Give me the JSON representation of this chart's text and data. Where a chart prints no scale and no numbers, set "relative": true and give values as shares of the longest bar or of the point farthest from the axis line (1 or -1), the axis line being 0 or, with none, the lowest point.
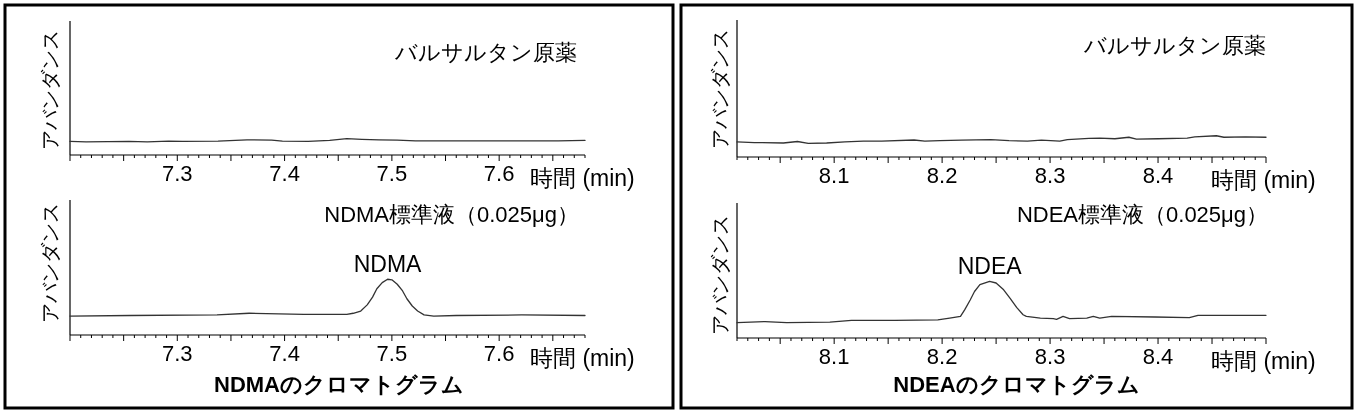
{
  "chart_data": [
    {
      "type": "line",
      "title": "バルサルタン原薬",
      "xlabel": "時間 (min)",
      "ylabel": "アバンダンス",
      "relative": true,
      "tick_labels": "x",
      "xlim": [
        7.2,
        7.68
      ],
      "xticks": [
        {
          "value": 7.2,
          "label": null
        },
        {
          "value": 7.21,
          "label": null
        },
        {
          "value": 7.22,
          "label": null
        },
        {
          "value": 7.23,
          "label": null
        },
        {
          "value": 7.24,
          "label": null
        },
        {
          "value": 7.25,
          "label": null
        },
        {
          "value": 7.26,
          "label": null
        },
        {
          "value": 7.27,
          "label": null
        },
        {
          "value": 7.28,
          "label": null
        },
        {
          "value": 7.29,
          "label": null
        },
        7.3,
        {
          "value": 7.31,
          "label": null
        },
        {
          "value": 7.32,
          "label": null
        },
        {
          "value": 7.33,
          "label": null
        },
        {
          "value": 7.34,
          "label": null
        },
        {
          "value": 7.35,
          "label": null
        },
        {
          "value": 7.36,
          "label": null
        },
        {
          "value": 7.37,
          "label": null
        },
        {
          "value": 7.38,
          "label": null
        },
        {
          "value": 7.39,
          "label": null
        },
        7.4,
        {
          "value": 7.41,
          "label": null
        },
        {
          "value": 7.42,
          "label": null
        },
        {
          "value": 7.43,
          "label": null
        },
        {
          "value": 7.44,
          "label": null
        },
        {
          "value": 7.45,
          "label": null
        },
        {
          "value": 7.46,
          "label": null
        },
        {
          "value": 7.47,
          "label": null
        },
        {
          "value": 7.48,
          "label": null
        },
        {
          "value": 7.49,
          "label": null
        },
        7.5,
        {
          "value": 7.51,
          "label": null
        },
        {
          "value": 7.52,
          "label": null
        },
        {
          "value": 7.53,
          "label": null
        },
        {
          "value": 7.54,
          "label": null
        },
        {
          "value": 7.55,
          "label": null
        },
        {
          "value": 7.56,
          "label": null
        },
        {
          "value": 7.57,
          "label": null
        },
        {
          "value": 7.58,
          "label": null
        },
        {
          "value": 7.59,
          "label": null
        },
        7.6,
        {
          "value": 7.61,
          "label": null
        },
        {
          "value": 7.62,
          "label": null
        },
        {
          "value": 7.63,
          "label": null
        },
        {
          "value": 7.64,
          "label": null
        },
        {
          "value": 7.65,
          "label": null
        },
        {
          "value": 7.66,
          "label": null
        },
        {
          "value": 7.67,
          "label": null
        },
        {
          "value": 7.68,
          "label": null
        }
      ],
      "x": [
        7.2,
        7.215,
        7.255,
        7.272,
        7.292,
        7.305,
        7.338,
        7.365,
        7.388,
        7.398,
        7.422,
        7.442,
        7.458,
        7.472,
        7.488,
        7.505,
        7.522,
        7.555,
        7.588,
        7.622,
        7.655,
        7.68
      ],
      "series": [
        {
          "color": "#333333",
          "values": [
            0.83,
            0.8,
            0.83,
            0.8,
            0.85,
            0.83,
            0.85,
            0.93,
            0.91,
            0.85,
            0.83,
            0.89,
            1,
            0.96,
            0.93,
            0.91,
            0.87,
            0.87,
            0.87,
            0.87,
            0.87,
            0.89
          ]
        }
      ]
    },
    {
      "type": "line",
      "title": "NDMA標準液（0.025μg）",
      "xlabel": "時間 (min)",
      "ylabel": "アバンダンス",
      "relative": true,
      "tick_labels": "x",
      "xlim": [
        7.2,
        7.68
      ],
      "xticks": [
        {
          "value": 7.2,
          "label": null
        },
        {
          "value": 7.21,
          "label": null
        },
        {
          "value": 7.22,
          "label": null
        },
        {
          "value": 7.23,
          "label": null
        },
        {
          "value": 7.24,
          "label": null
        },
        {
          "value": 7.25,
          "label": null
        },
        {
          "value": 7.26,
          "label": null
        },
        {
          "value": 7.27,
          "label": null
        },
        {
          "value": 7.28,
          "label": null
        },
        {
          "value": 7.29,
          "label": null
        },
        7.3,
        {
          "value": 7.31,
          "label": null
        },
        {
          "value": 7.32,
          "label": null
        },
        {
          "value": 7.33,
          "label": null
        },
        {
          "value": 7.34,
          "label": null
        },
        {
          "value": 7.35,
          "label": null
        },
        {
          "value": 7.36,
          "label": null
        },
        {
          "value": 7.37,
          "label": null
        },
        {
          "value": 7.38,
          "label": null
        },
        {
          "value": 7.39,
          "label": null
        },
        7.4,
        {
          "value": 7.41,
          "label": null
        },
        {
          "value": 7.42,
          "label": null
        },
        {
          "value": 7.43,
          "label": null
        },
        {
          "value": 7.44,
          "label": null
        },
        {
          "value": 7.45,
          "label": null
        },
        {
          "value": 7.46,
          "label": null
        },
        {
          "value": 7.47,
          "label": null
        },
        {
          "value": 7.48,
          "label": null
        },
        {
          "value": 7.49,
          "label": null
        },
        7.5,
        {
          "value": 7.51,
          "label": null
        },
        {
          "value": 7.52,
          "label": null
        },
        {
          "value": 7.53,
          "label": null
        },
        {
          "value": 7.54,
          "label": null
        },
        {
          "value": 7.55,
          "label": null
        },
        {
          "value": 7.56,
          "label": null
        },
        {
          "value": 7.57,
          "label": null
        },
        {
          "value": 7.58,
          "label": null
        },
        {
          "value": 7.59,
          "label": null
        },
        7.6,
        {
          "value": 7.61,
          "label": null
        },
        {
          "value": 7.62,
          "label": null
        },
        {
          "value": 7.63,
          "label": null
        },
        {
          "value": 7.64,
          "label": null
        },
        {
          "value": 7.65,
          "label": null
        },
        {
          "value": 7.66,
          "label": null
        },
        {
          "value": 7.67,
          "label": null
        },
        {
          "value": 7.68,
          "label": null
        }
      ],
      "x": [
        7.2,
        7.256,
        7.337,
        7.367,
        7.418,
        7.458,
        7.464,
        7.471,
        7.477,
        7.482,
        7.486,
        7.491,
        7.496,
        7.5,
        7.505,
        7.51,
        7.514,
        7.519,
        7.524,
        7.53,
        7.539,
        7.56,
        7.621,
        7.68
      ],
      "series": [
        {
          "color": "#333333",
          "values": [
            0.34,
            0.35,
            0.36,
            0.39,
            0.37,
            0.37,
            0.39,
            0.43,
            0.54,
            0.68,
            0.83,
            0.94,
            1,
            0.99,
            0.91,
            0.79,
            0.65,
            0.52,
            0.43,
            0.36,
            0.34,
            0.35,
            0.36,
            0.35
          ]
        }
      ],
      "annotations": [
        {
          "text": "NDMA",
          "x": 7.496,
          "y": 1
        },
        "NDMAのクロマトグラム"
      ]
    },
    {
      "type": "line",
      "title": "バルサルタン原薬",
      "xlabel": "時間 (min)",
      "ylabel": "アバンダンス",
      "relative": true,
      "tick_labels": "x",
      "xlim": [
        8.01,
        8.5
      ],
      "xticks": [
        {
          "value": 8.01,
          "label": null
        },
        {
          "value": 8.02,
          "label": null
        },
        {
          "value": 8.03,
          "label": null
        },
        {
          "value": 8.04,
          "label": null
        },
        {
          "value": 8.05,
          "label": null
        },
        {
          "value": 8.06,
          "label": null
        },
        {
          "value": 8.07,
          "label": null
        },
        {
          "value": 8.08,
          "label": null
        },
        {
          "value": 8.09,
          "label": null
        },
        8.1,
        {
          "value": 8.11,
          "label": null
        },
        {
          "value": 8.12,
          "label": null
        },
        {
          "value": 8.13,
          "label": null
        },
        {
          "value": 8.14,
          "label": null
        },
        {
          "value": 8.15,
          "label": null
        },
        {
          "value": 8.16,
          "label": null
        },
        {
          "value": 8.17,
          "label": null
        },
        {
          "value": 8.18,
          "label": null
        },
        {
          "value": 8.19,
          "label": null
        },
        8.2,
        {
          "value": 8.21,
          "label": null
        },
        {
          "value": 8.22,
          "label": null
        },
        {
          "value": 8.23,
          "label": null
        },
        {
          "value": 8.24,
          "label": null
        },
        {
          "value": 8.25,
          "label": null
        },
        {
          "value": 8.26,
          "label": null
        },
        {
          "value": 8.27,
          "label": null
        },
        {
          "value": 8.28,
          "label": null
        },
        {
          "value": 8.29,
          "label": null
        },
        8.3,
        {
          "value": 8.31,
          "label": null
        },
        {
          "value": 8.32,
          "label": null
        },
        {
          "value": 8.33,
          "label": null
        },
        {
          "value": 8.34,
          "label": null
        },
        {
          "value": 8.35,
          "label": null
        },
        {
          "value": 8.36,
          "label": null
        },
        {
          "value": 8.37,
          "label": null
        },
        {
          "value": 8.38,
          "label": null
        },
        {
          "value": 8.39,
          "label": null
        },
        8.4,
        {
          "value": 8.41,
          "label": null
        },
        {
          "value": 8.42,
          "label": null
        },
        {
          "value": 8.43,
          "label": null
        },
        {
          "value": 8.44,
          "label": null
        },
        {
          "value": 8.45,
          "label": null
        },
        {
          "value": 8.46,
          "label": null
        },
        {
          "value": 8.47,
          "label": null
        },
        {
          "value": 8.48,
          "label": null
        },
        {
          "value": 8.49,
          "label": null
        },
        {
          "value": 8.5,
          "label": null
        }
      ],
      "x": [
        8.01,
        8.026,
        8.053,
        8.066,
        8.076,
        8.093,
        8.11,
        8.127,
        8.144,
        8.174,
        8.184,
        8.198,
        8.218,
        8.245,
        8.262,
        8.279,
        8.292,
        8.309,
        8.316,
        8.336,
        8.346,
        8.36,
        8.373,
        8.38,
        8.4,
        8.427,
        8.434,
        8.454,
        8.461,
        8.481,
        8.5
      ],
      "series": [
        {
          "color": "#333333",
          "values": [
            0.71,
            0.68,
            0.66,
            0.73,
            0.64,
            0.66,
            0.71,
            0.75,
            0.75,
            0.8,
            0.75,
            0.77,
            0.79,
            0.82,
            0.77,
            0.75,
            0.79,
            0.75,
            0.82,
            0.88,
            0.89,
            0.86,
            0.93,
            0.84,
            0.86,
            0.89,
            0.95,
            1,
            0.93,
            0.95,
            0.93
          ]
        }
      ]
    },
    {
      "type": "line",
      "title": "NDEA標準液（0.025μg）",
      "xlabel": "時間 (min)",
      "ylabel": "アバンダンス",
      "relative": true,
      "tick_labels": "x",
      "xlim": [
        8.01,
        8.5
      ],
      "xticks": [
        {
          "value": 8.01,
          "label": null
        },
        {
          "value": 8.02,
          "label": null
        },
        {
          "value": 8.03,
          "label": null
        },
        {
          "value": 8.04,
          "label": null
        },
        {
          "value": 8.05,
          "label": null
        },
        {
          "value": 8.06,
          "label": null
        },
        {
          "value": 8.07,
          "label": null
        },
        {
          "value": 8.08,
          "label": null
        },
        {
          "value": 8.09,
          "label": null
        },
        8.1,
        {
          "value": 8.11,
          "label": null
        },
        {
          "value": 8.12,
          "label": null
        },
        {
          "value": 8.13,
          "label": null
        },
        {
          "value": 8.14,
          "label": null
        },
        {
          "value": 8.15,
          "label": null
        },
        {
          "value": 8.16,
          "label": null
        },
        {
          "value": 8.17,
          "label": null
        },
        {
          "value": 8.18,
          "label": null
        },
        {
          "value": 8.19,
          "label": null
        },
        8.2,
        {
          "value": 8.21,
          "label": null
        },
        {
          "value": 8.22,
          "label": null
        },
        {
          "value": 8.23,
          "label": null
        },
        {
          "value": 8.24,
          "label": null
        },
        {
          "value": 8.25,
          "label": null
        },
        {
          "value": 8.26,
          "label": null
        },
        {
          "value": 8.27,
          "label": null
        },
        {
          "value": 8.28,
          "label": null
        },
        {
          "value": 8.29,
          "label": null
        },
        8.3,
        {
          "value": 8.31,
          "label": null
        },
        {
          "value": 8.32,
          "label": null
        },
        {
          "value": 8.33,
          "label": null
        },
        {
          "value": 8.34,
          "label": null
        },
        {
          "value": 8.35,
          "label": null
        },
        {
          "value": 8.36,
          "label": null
        },
        {
          "value": 8.37,
          "label": null
        },
        {
          "value": 8.38,
          "label": null
        },
        {
          "value": 8.39,
          "label": null
        },
        8.4,
        {
          "value": 8.41,
          "label": null
        },
        {
          "value": 8.42,
          "label": null
        },
        {
          "value": 8.43,
          "label": null
        },
        {
          "value": 8.44,
          "label": null
        },
        {
          "value": 8.45,
          "label": null
        },
        {
          "value": 8.46,
          "label": null
        },
        {
          "value": 8.47,
          "label": null
        },
        {
          "value": 8.48,
          "label": null
        },
        {
          "value": 8.49,
          "label": null
        },
        {
          "value": 8.5,
          "label": null
        }
      ],
      "x": [
        8.01,
        8.036,
        8.056,
        8.096,
        8.116,
        8.156,
        8.196,
        8.207,
        8.217,
        8.221,
        8.226,
        8.23,
        8.235,
        8.244,
        8.25,
        8.257,
        8.263,
        8.269,
        8.275,
        8.278,
        8.291,
        8.303,
        8.306,
        8.312,
        8.318,
        8.334,
        8.34,
        8.346,
        8.357,
        8.397,
        8.429,
        8.437,
        8.477,
        8.5
      ],
      "series": [
        {
          "color": "#333333",
          "values": [
            0.27,
            0.29,
            0.27,
            0.28,
            0.31,
            0.31,
            0.32,
            0.35,
            0.38,
            0.5,
            0.67,
            0.82,
            0.94,
            1,
            0.97,
            0.85,
            0.7,
            0.54,
            0.41,
            0.38,
            0.35,
            0.34,
            0.33,
            0.38,
            0.34,
            0.35,
            0.38,
            0.35,
            0.38,
            0.37,
            0.36,
            0.4,
            0.4,
            0.4
          ]
        }
      ],
      "annotations": [
        {
          "text": "NDEA",
          "x": 8.244,
          "y": 1
        },
        "NDEAのクロマトグラム"
      ]
    }
  ]
}
